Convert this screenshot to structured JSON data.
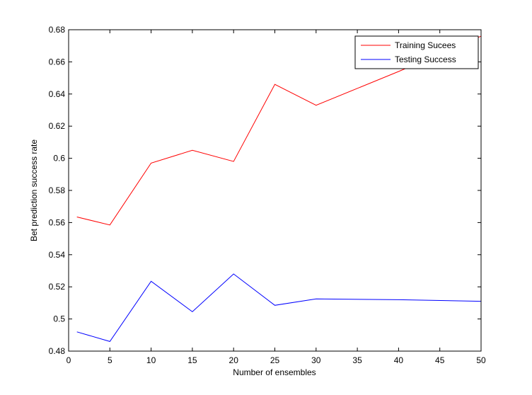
{
  "chart_data": {
    "type": "line",
    "title": "",
    "xlabel": "Number of ensembles",
    "ylabel": "Bet prediction success rate",
    "xlim": [
      0,
      50
    ],
    "ylim": [
      0.48,
      0.68
    ],
    "xticks": [
      0,
      5,
      10,
      15,
      20,
      25,
      30,
      35,
      40,
      45,
      50
    ],
    "yticks": [
      0.48,
      0.5,
      0.52,
      0.54,
      0.56,
      0.58,
      0.6,
      0.62,
      0.64,
      0.66,
      0.68
    ],
    "xtick_labels": [
      "0",
      "5",
      "10",
      "15",
      "20",
      "25",
      "30",
      "35",
      "40",
      "45",
      "50"
    ],
    "ytick_labels": [
      "0.48",
      "0.5",
      "0.52",
      "0.54",
      "0.56",
      "0.58",
      "0.6",
      "0.62",
      "0.64",
      "0.66",
      "0.68"
    ],
    "grid": false,
    "legend_position": "top-right",
    "series": [
      {
        "name": "Training Sucees",
        "color": "#ff0000",
        "x": [
          1,
          5,
          10,
          15,
          20,
          25,
          30,
          40,
          50
        ],
        "values": [
          0.5635,
          0.5585,
          0.597,
          0.605,
          0.598,
          0.646,
          0.633,
          0.654,
          0.676
        ]
      },
      {
        "name": "Testing Success",
        "color": "#0000ff",
        "x": [
          1,
          5,
          10,
          15,
          20,
          25,
          30,
          40,
          50
        ],
        "values": [
          0.492,
          0.486,
          0.5235,
          0.5045,
          0.528,
          0.5085,
          0.5125,
          0.512,
          0.511
        ]
      }
    ]
  }
}
